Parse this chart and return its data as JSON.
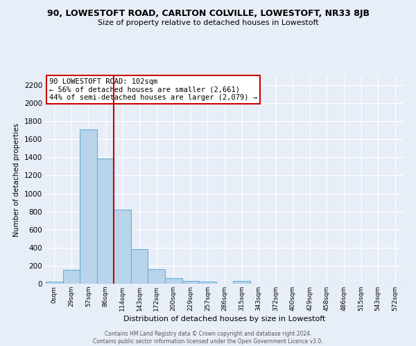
{
  "title": "90, LOWESTOFT ROAD, CARLTON COLVILLE, LOWESTOFT, NR33 8JB",
  "subtitle": "Size of property relative to detached houses in Lowestoft",
  "xlabel": "Distribution of detached houses by size in Lowestoft",
  "ylabel": "Number of detached properties",
  "bar_labels": [
    "0sqm",
    "29sqm",
    "57sqm",
    "86sqm",
    "114sqm",
    "143sqm",
    "172sqm",
    "200sqm",
    "229sqm",
    "257sqm",
    "286sqm",
    "315sqm",
    "343sqm",
    "372sqm",
    "400sqm",
    "429sqm",
    "458sqm",
    "486sqm",
    "515sqm",
    "543sqm",
    "572sqm"
  ],
  "bar_values": [
    20,
    155,
    1710,
    1390,
    820,
    385,
    160,
    65,
    30,
    20,
    0,
    30,
    0,
    0,
    0,
    0,
    0,
    0,
    0,
    0,
    0
  ],
  "bar_color": "#b8d4ea",
  "bar_edge_color": "#6aaed6",
  "ylim": [
    0,
    2300
  ],
  "yticks": [
    0,
    200,
    400,
    600,
    800,
    1000,
    1200,
    1400,
    1600,
    1800,
    2000,
    2200
  ],
  "annotation_title": "90 LOWESTOFT ROAD: 102sqm",
  "annotation_line1": "← 56% of detached houses are smaller (2,661)",
  "annotation_line2": "44% of semi-detached houses are larger (2,079) →",
  "annotation_box_color": "#ffffff",
  "annotation_border_color": "#cc0000",
  "vline_x": 3.5,
  "vline_color": "#cc0000",
  "footer_line1": "Contains HM Land Registry data © Crown copyright and database right 2024.",
  "footer_line2": "Contains public sector information licensed under the Open Government Licence v3.0.",
  "bg_color": "#e8eef8",
  "grid_color": "#ffffff",
  "title_fontsize": 9,
  "subtitle_fontsize": 8
}
